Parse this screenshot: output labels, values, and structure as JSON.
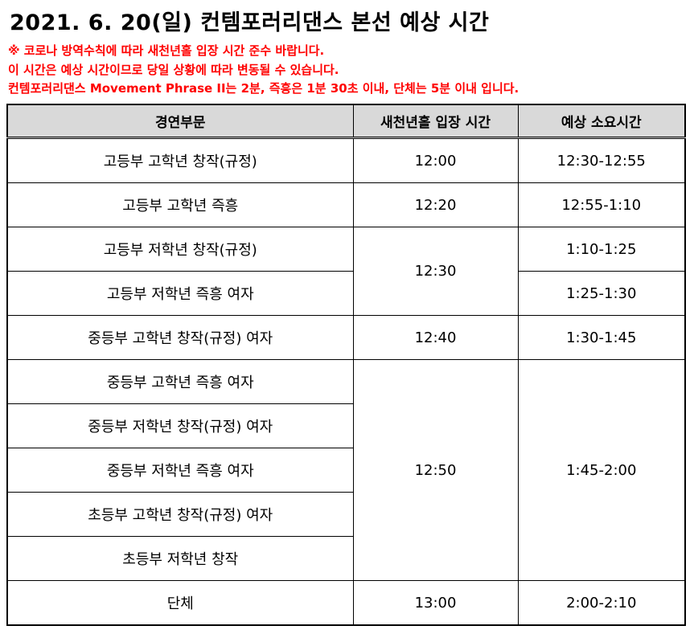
{
  "title": "2021. 6. 20(일) 컨템포러리댄스 본선 예상 시간",
  "notes": [
    "※ 코로나 방역수칙에 따라 새천년홀 입장 시간 준수 바랍니다.",
    "이 시간은 예상 시간이므로 당일 상황에 따라 변동될 수 있습니다.",
    "컨템포러리댄스 Movement Phrase II는 2분, 즉흥은 1분 30초 이내, 단체는 5분 이내 입니다."
  ],
  "table": {
    "headers": [
      "경연부문",
      "새천년홀 입장 시간",
      "예상 소요시간"
    ],
    "categories": [
      "고등부 고학년 창작(규정)",
      "고등부 고학년 즉흥",
      "고등부 저학년 창작(규정)",
      "고등부 저학년 즉흥 여자",
      "중등부 고학년 창작(규정) 여자",
      "중등부 고학년 즉흥 여자",
      "중등부 저학년 창작(규정) 여자",
      "중등부 저학년 즉흥 여자",
      "초등부 고학년 창작(규정) 여자",
      "초등부 저학년 창작",
      "단체"
    ],
    "entry_times": [
      "12:00",
      "12:20",
      "12:30",
      "12:40",
      "12:50",
      "13:00"
    ],
    "durations": [
      "12:30-12:55",
      "12:55-1:10",
      "1:10-1:25",
      "1:25-1:30",
      "1:30-1:45",
      "1:45-2:00",
      "2:00-2:10"
    ]
  }
}
